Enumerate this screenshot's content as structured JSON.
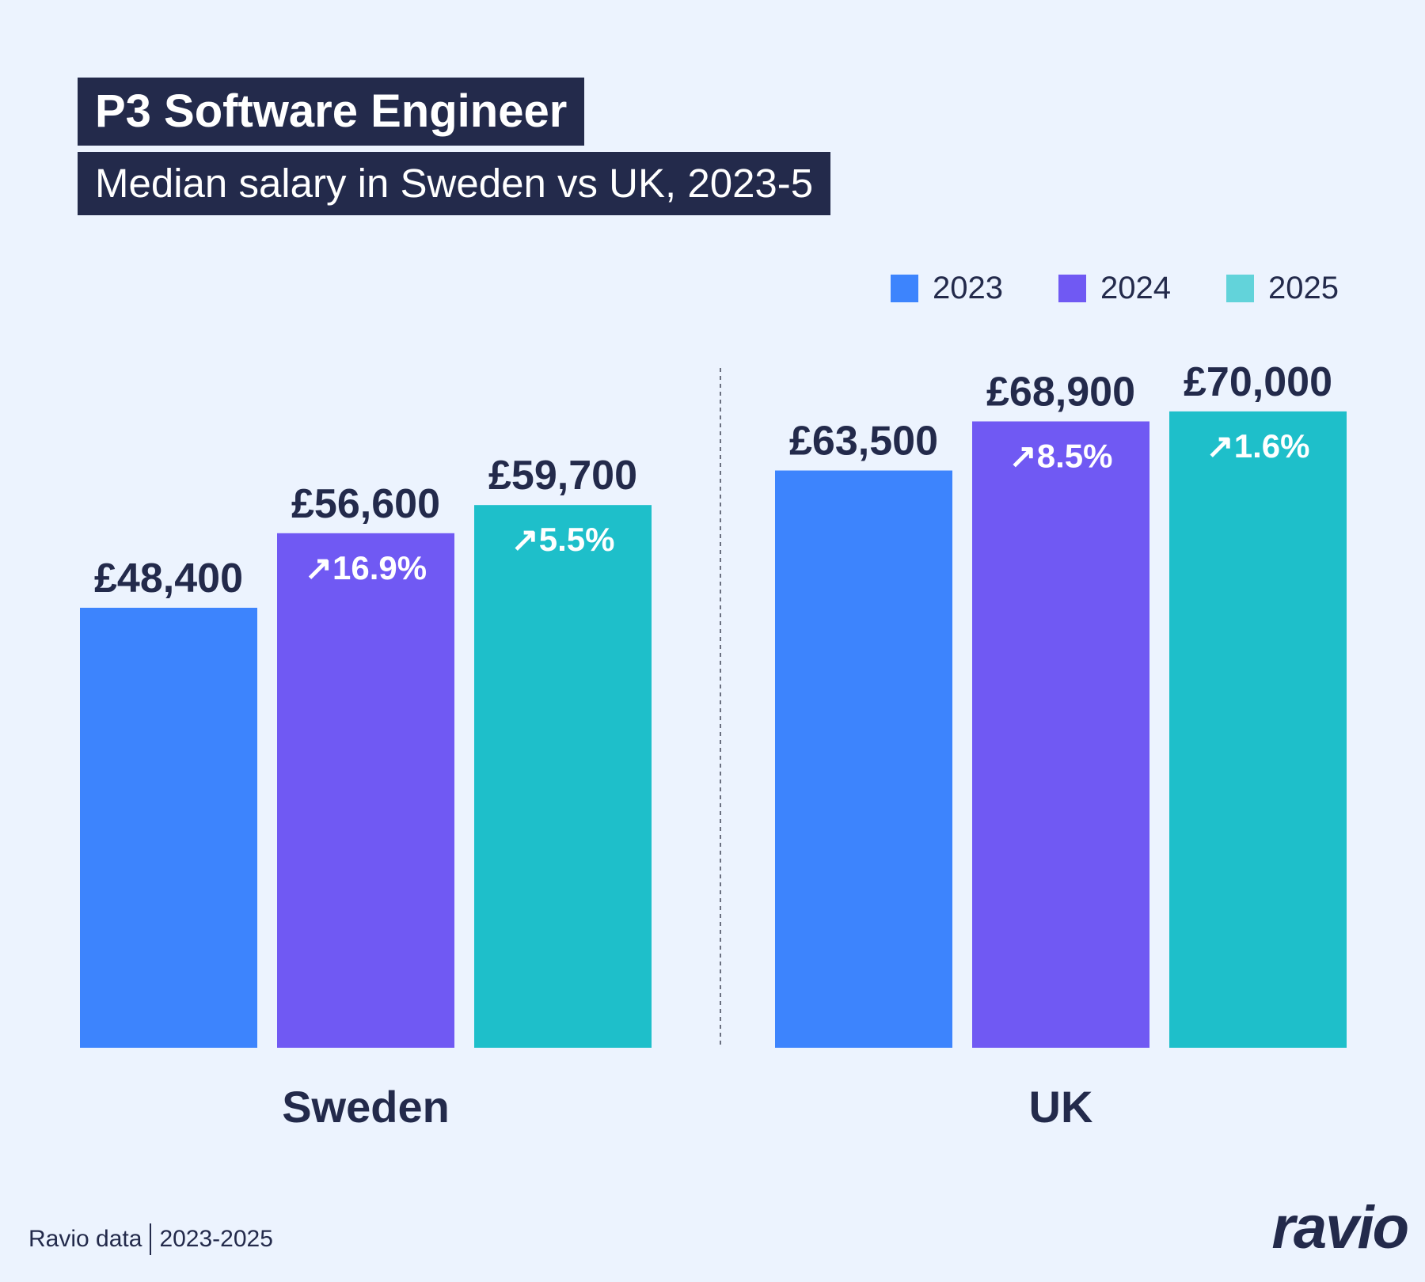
{
  "chart_data": {
    "type": "bar",
    "title": "P3 Software Engineer",
    "subtitle": "Median salary in Sweden vs UK, 2023-5",
    "categories": [
      "Sweden",
      "UK"
    ],
    "series": [
      {
        "name": "2023",
        "color": "#3d84fd",
        "values": [
          48400,
          63500
        ],
        "labels": [
          "£48,400",
          "£63,500"
        ],
        "change": [
          "",
          ""
        ]
      },
      {
        "name": "2024",
        "color": "#7059f3",
        "values": [
          56600,
          68900
        ],
        "labels": [
          "£56,600",
          "£68,900"
        ],
        "change": [
          "↗16.9%",
          "↗8.5%"
        ]
      },
      {
        "name": "2025",
        "color": "#1ebfca",
        "values": [
          59700,
          70000
        ],
        "labels": [
          "£59,700",
          "£70,000"
        ],
        "change": [
          "↗5.5%",
          "↗1.6%"
        ]
      }
    ],
    "legend_colors": [
      "#3d84fd",
      "#7059f3",
      "#62d3da"
    ],
    "legend_placement": "top-right",
    "ylim": [
      0,
      70000
    ],
    "grid": false
  },
  "footer": {
    "source": "Ravio data",
    "years": "2023-2025"
  },
  "logo": "ravio"
}
